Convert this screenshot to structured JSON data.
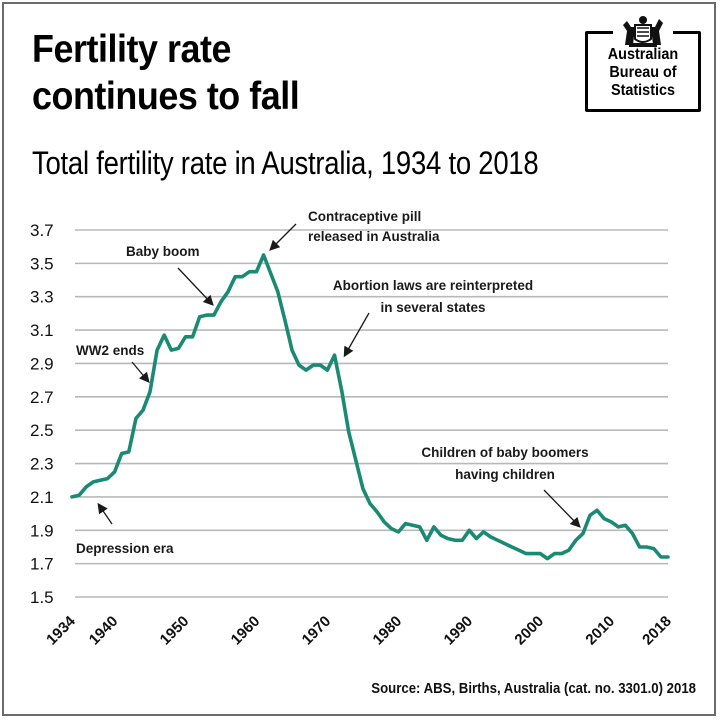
{
  "header": {
    "title_line1": "Fertility rate",
    "title_line2": "continues to fall",
    "subtitle": "Total fertility rate in Australia, 1934 to 2018"
  },
  "logo": {
    "line1": "Australian",
    "line2": "Bureau of",
    "line3": "Statistics",
    "crest_icon": "coat-of-arms-icon"
  },
  "footer": {
    "source": "Source: ABS, Births, Australia (cat. no. 3301.0) 2018"
  },
  "colors": {
    "line": "#1a8a74",
    "grid": "#b8b8b8",
    "text": "#111111"
  },
  "chart_data": {
    "type": "line",
    "title": "Total fertility rate in Australia, 1934 to 2018",
    "xlabel": "",
    "ylabel": "",
    "xlim": [
      1934,
      2018
    ],
    "ylim": [
      1.5,
      3.7
    ],
    "grid": true,
    "legend": "none",
    "y_ticks": [
      "3.7",
      "3.5",
      "3.3",
      "3.1",
      "2.9",
      "2.7",
      "2.5",
      "2.3",
      "2.1",
      "1.9",
      "1.7",
      "1.5"
    ],
    "y_tick_values": [
      3.7,
      3.5,
      3.3,
      3.1,
      2.9,
      2.7,
      2.5,
      2.3,
      2.1,
      1.9,
      1.7,
      1.5
    ],
    "x_ticks": [
      "1934",
      "1940",
      "1950",
      "1960",
      "1970",
      "1980",
      "1990",
      "2000",
      "2010",
      "2018"
    ],
    "x_tick_values": [
      1934,
      1940,
      1950,
      1960,
      1970,
      1980,
      1990,
      2000,
      2010,
      2018
    ],
    "series": [
      {
        "name": "Total fertility rate",
        "x": [
          1934,
          1935,
          1936,
          1937,
          1938,
          1939,
          1940,
          1941,
          1942,
          1943,
          1944,
          1945,
          1946,
          1947,
          1948,
          1949,
          1950,
          1951,
          1952,
          1953,
          1954,
          1955,
          1956,
          1957,
          1958,
          1959,
          1960,
          1961,
          1962,
          1963,
          1964,
          1965,
          1966,
          1967,
          1968,
          1969,
          1970,
          1971,
          1972,
          1973,
          1974,
          1975,
          1976,
          1977,
          1978,
          1979,
          1980,
          1981,
          1982,
          1983,
          1984,
          1985,
          1986,
          1987,
          1988,
          1989,
          1990,
          1991,
          1992,
          1993,
          1994,
          1995,
          1996,
          1997,
          1998,
          1999,
          2000,
          2001,
          2002,
          2003,
          2004,
          2005,
          2006,
          2007,
          2008,
          2009,
          2010,
          2011,
          2012,
          2013,
          2014,
          2015,
          2016,
          2017,
          2018
        ],
        "values": [
          2.1,
          2.11,
          2.16,
          2.19,
          2.2,
          2.21,
          2.25,
          2.36,
          2.37,
          2.57,
          2.62,
          2.73,
          2.98,
          3.07,
          2.98,
          2.99,
          3.06,
          3.06,
          3.18,
          3.19,
          3.19,
          3.27,
          3.33,
          3.42,
          3.42,
          3.45,
          3.45,
          3.55,
          3.44,
          3.33,
          3.16,
          2.98,
          2.89,
          2.86,
          2.89,
          2.89,
          2.86,
          2.95,
          2.74,
          2.49,
          2.32,
          2.15,
          2.06,
          2.01,
          1.95,
          1.91,
          1.89,
          1.94,
          1.93,
          1.92,
          1.84,
          1.92,
          1.87,
          1.85,
          1.84,
          1.84,
          1.9,
          1.85,
          1.89,
          1.86,
          1.84,
          1.82,
          1.8,
          1.78,
          1.76,
          1.76,
          1.76,
          1.73,
          1.76,
          1.76,
          1.78,
          1.84,
          1.88,
          1.99,
          2.02,
          1.97,
          1.95,
          1.92,
          1.93,
          1.88,
          1.8,
          1.8,
          1.79,
          1.74,
          1.74
        ]
      }
    ],
    "annotations": [
      {
        "id": "depression",
        "text": [
          "Depression era"
        ],
        "target": [
          1937,
          2.1
        ]
      },
      {
        "id": "ww2",
        "text": [
          "WW2 ends"
        ],
        "target": [
          1945,
          2.75
        ]
      },
      {
        "id": "babyboom",
        "text": [
          "Baby boom"
        ],
        "target": [
          1954,
          3.21
        ]
      },
      {
        "id": "pill",
        "text": [
          "Contraceptive pill",
          "released in Australia"
        ],
        "target": [
          1961,
          3.56
        ]
      },
      {
        "id": "abortion",
        "text": [
          "Abortion laws are reinterpreted",
          "in several states"
        ],
        "target": [
          1971,
          2.96
        ]
      },
      {
        "id": "boomers",
        "text": [
          "Children of baby boomers",
          "having children"
        ],
        "target": [
          2006,
          1.88
        ]
      }
    ]
  }
}
